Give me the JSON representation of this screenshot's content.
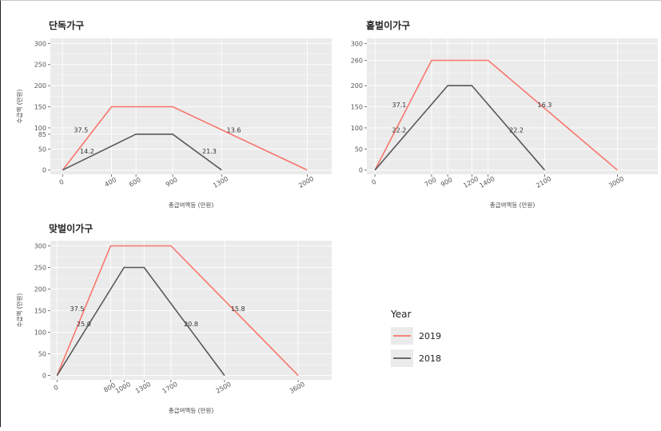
{
  "colors": {
    "2019": "#f8766d",
    "2018": "#595959",
    "panel": "#ebebeb",
    "grid": "#ffffff"
  },
  "legend": {
    "title": "Year",
    "items": [
      "2019",
      "2018"
    ]
  },
  "chart_data": [
    {
      "type": "line",
      "title": "단독가구",
      "xlabel": "총급여액등 (만원)",
      "ylabel": "수급액 (만원)",
      "ylim": [
        0,
        300
      ],
      "yticks": [
        0,
        50,
        85,
        100,
        150,
        200,
        250,
        300
      ],
      "ytick_labels": [
        "0",
        "50",
        "85",
        "100",
        "150",
        "200",
        "250",
        "300"
      ],
      "xlim": [
        -100,
        2200
      ],
      "xticks": [
        0,
        400,
        600,
        900,
        1300,
        2000
      ],
      "xtick_labels": [
        "0",
        "400",
        "600",
        "900",
        "1300",
        "2000"
      ],
      "series": [
        {
          "name": "2019",
          "x": [
            0,
            400,
            900,
            2000
          ],
          "y": [
            0,
            150,
            150,
            0
          ]
        },
        {
          "name": "2018",
          "x": [
            0,
            600,
            900,
            1300
          ],
          "y": [
            0,
            85,
            85,
            0
          ]
        }
      ],
      "annotations": [
        {
          "text": "37.5",
          "x": 150,
          "y": 95
        },
        {
          "text": "13.6",
          "x": 1400,
          "y": 95
        },
        {
          "text": "14.2",
          "x": 200,
          "y": 45
        },
        {
          "text": "21.3",
          "x": 1200,
          "y": 45
        }
      ]
    },
    {
      "type": "line",
      "title": "홑벌이가구",
      "xlabel": "총급여액등 (만원)",
      "ylabel": "",
      "ylim": [
        0,
        300
      ],
      "yticks": [
        0,
        50,
        100,
        150,
        200,
        260,
        300
      ],
      "ytick_labels": [
        "0",
        "50",
        "100",
        "150",
        "200",
        "260",
        "300"
      ],
      "xlim": [
        -100,
        3500
      ],
      "xticks": [
        0,
        700,
        900,
        1200,
        1400,
        2100,
        3000
      ],
      "xtick_labels": [
        "0",
        "700",
        "900",
        "1200",
        "1400",
        "2100",
        "3000"
      ],
      "series": [
        {
          "name": "2019",
          "x": [
            0,
            700,
            1400,
            3000
          ],
          "y": [
            0,
            260,
            260,
            0
          ]
        },
        {
          "name": "2018",
          "x": [
            0,
            900,
            1200,
            2100
          ],
          "y": [
            0,
            200,
            200,
            0
          ]
        }
      ],
      "annotations": [
        {
          "text": "37.1",
          "x": 300,
          "y": 155
        },
        {
          "text": "16.3",
          "x": 2100,
          "y": 155
        },
        {
          "text": "22.2",
          "x": 300,
          "y": 95
        },
        {
          "text": "22.2",
          "x": 1750,
          "y": 95
        }
      ]
    },
    {
      "type": "line",
      "title": "맞벌이가구",
      "xlabel": "총급여액등 (만원)",
      "ylabel": "수급액 (만원)",
      "ylim": [
        0,
        300
      ],
      "yticks": [
        0,
        50,
        100,
        150,
        200,
        250,
        300
      ],
      "ytick_labels": [
        "0",
        "50",
        "100",
        "150",
        "200",
        "250",
        "300"
      ],
      "xlim": [
        -100,
        4100
      ],
      "xticks": [
        0,
        800,
        1000,
        1300,
        1700,
        2500,
        3600
      ],
      "xtick_labels": [
        "0",
        "800",
        "1000",
        "1300",
        "1700",
        "2500",
        "3600"
      ],
      "series": [
        {
          "name": "2019",
          "x": [
            0,
            800,
            1700,
            3600
          ],
          "y": [
            0,
            300,
            300,
            0
          ]
        },
        {
          "name": "2018",
          "x": [
            0,
            1000,
            1300,
            2500
          ],
          "y": [
            0,
            250,
            250,
            0
          ]
        }
      ],
      "annotations": [
        {
          "text": "37.5",
          "x": 300,
          "y": 155
        },
        {
          "text": "15.8",
          "x": 2700,
          "y": 155
        },
        {
          "text": "25.0",
          "x": 400,
          "y": 120
        },
        {
          "text": "20.8",
          "x": 2000,
          "y": 120
        }
      ]
    }
  ]
}
